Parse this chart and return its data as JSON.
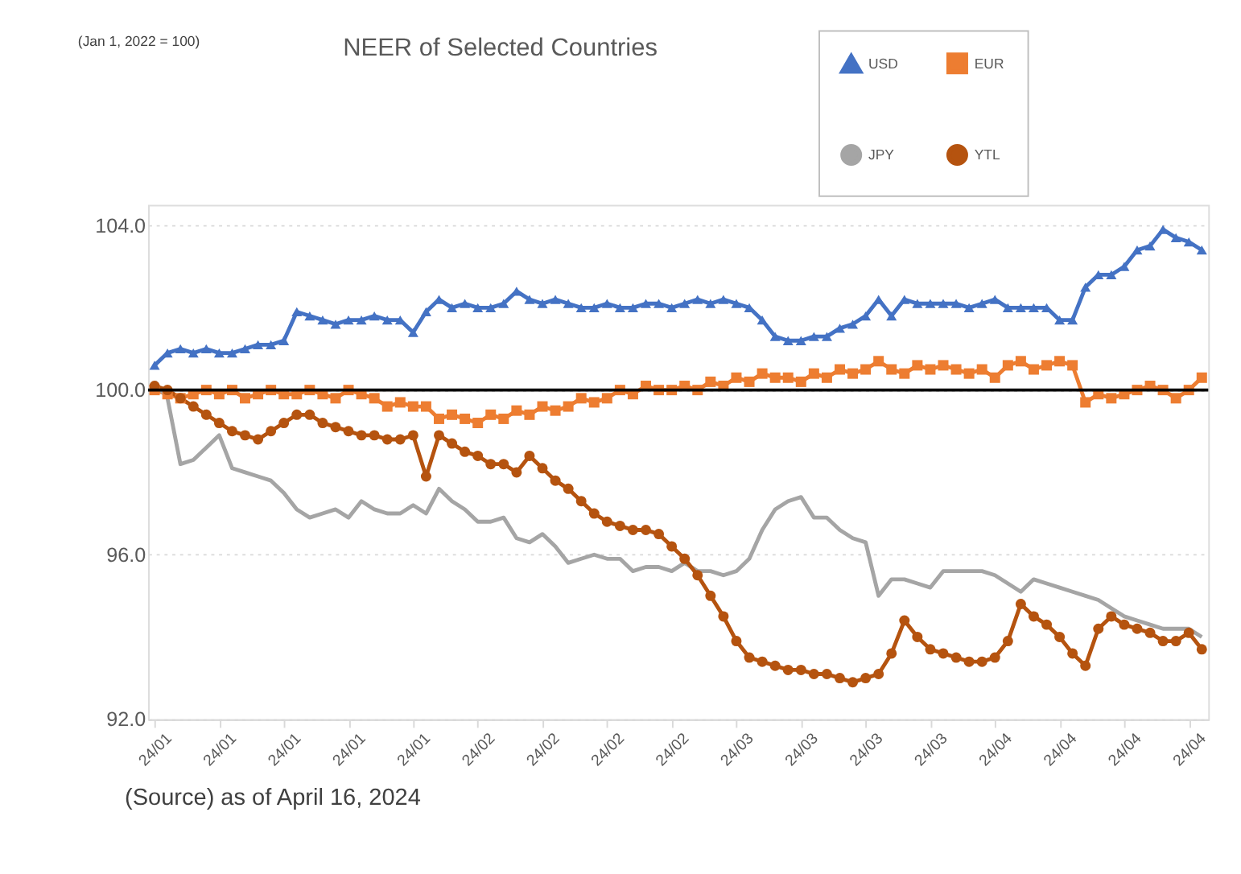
{
  "chart_data": {
    "type": "line",
    "title": "NEER of Selected Countries",
    "annotations": [
      "(Jan 1, 2022 = 100)",
      "(Source) as of April 16, 2024"
    ],
    "categories": [
      "24/01",
      null,
      null,
      null,
      null,
      "24/01",
      null,
      null,
      null,
      null,
      "24/01",
      null,
      null,
      null,
      null,
      "24/01",
      null,
      null,
      null,
      null,
      "24/01",
      null,
      null,
      null,
      null,
      "24/02",
      null,
      null,
      null,
      null,
      "24/02",
      null,
      null,
      null,
      null,
      "24/02",
      null,
      null,
      null,
      null,
      "24/02",
      null,
      null,
      null,
      null,
      "24/03",
      null,
      null,
      null,
      null,
      "24/03",
      null,
      null,
      null,
      null,
      "24/03",
      null,
      null,
      null,
      null,
      "24/03",
      null,
      null,
      null,
      null,
      "24/04",
      null,
      null,
      null,
      null,
      "24/04",
      null,
      null,
      null,
      null,
      "24/04",
      null,
      null,
      null,
      null,
      "24/04",
      null
    ],
    "series": [
      {
        "name": "USD",
        "color": "#4472c4",
        "marker": "triangle",
        "values": [
          100.6,
          100.9,
          101.0,
          100.9,
          101.0,
          100.9,
          100.9,
          101.0,
          101.1,
          101.1,
          101.2,
          101.9,
          101.8,
          101.7,
          101.6,
          101.7,
          101.7,
          101.8,
          101.7,
          101.7,
          101.4,
          101.9,
          102.2,
          102.0,
          102.1,
          102.0,
          102.0,
          102.1,
          102.4,
          102.2,
          102.1,
          102.2,
          102.1,
          102.0,
          102.0,
          102.1,
          102.0,
          102.0,
          102.1,
          102.1,
          102.0,
          102.1,
          102.2,
          102.1,
          102.2,
          102.1,
          102.0,
          101.7,
          101.3,
          101.2,
          101.2,
          101.3,
          101.3,
          101.5,
          101.6,
          101.8,
          102.2,
          101.8,
          102.2,
          102.1,
          102.1,
          102.1,
          102.1,
          102.0,
          102.1,
          102.2,
          102.0,
          102.0,
          102.0,
          102.0,
          101.7,
          101.7,
          102.5,
          102.8,
          102.8,
          103.0,
          103.4,
          103.5,
          103.9,
          103.7,
          103.6,
          103.4
        ]
      },
      {
        "name": "EUR",
        "color": "#ed7d31",
        "marker": "square",
        "values": [
          100.0,
          99.9,
          99.8,
          99.9,
          100.0,
          99.9,
          100.0,
          99.8,
          99.9,
          100.0,
          99.9,
          99.9,
          100.0,
          99.9,
          99.8,
          100.0,
          99.9,
          99.8,
          99.6,
          99.7,
          99.6,
          99.6,
          99.3,
          99.4,
          99.3,
          99.2,
          99.4,
          99.3,
          99.5,
          99.4,
          99.6,
          99.5,
          99.6,
          99.8,
          99.7,
          99.8,
          100.0,
          99.9,
          100.1,
          100.0,
          100.0,
          100.1,
          100.0,
          100.2,
          100.1,
          100.3,
          100.2,
          100.4,
          100.3,
          100.3,
          100.2,
          100.4,
          100.3,
          100.5,
          100.4,
          100.5,
          100.7,
          100.5,
          100.4,
          100.6,
          100.5,
          100.6,
          100.5,
          100.4,
          100.5,
          100.3,
          100.6,
          100.7,
          100.5,
          100.6,
          100.7,
          100.6,
          99.7,
          99.9,
          99.8,
          99.9,
          100.0,
          100.1,
          100.0,
          99.8,
          100.0,
          100.3
        ]
      },
      {
        "name": "JPY",
        "color": "#a5a5a5",
        "marker": "none",
        "values": [
          100.2,
          99.8,
          98.2,
          98.3,
          98.6,
          98.9,
          98.1,
          98.0,
          97.9,
          97.8,
          97.5,
          97.1,
          96.9,
          97.0,
          97.1,
          96.9,
          97.3,
          97.1,
          97.0,
          97.0,
          97.2,
          97.0,
          97.6,
          97.3,
          97.1,
          96.8,
          96.8,
          96.9,
          96.4,
          96.3,
          96.5,
          96.2,
          95.8,
          95.9,
          96.0,
          95.9,
          95.9,
          95.6,
          95.7,
          95.7,
          95.6,
          95.8,
          95.6,
          95.6,
          95.5,
          95.6,
          95.9,
          96.6,
          97.1,
          97.3,
          97.4,
          96.9,
          96.9,
          96.6,
          96.4,
          96.3,
          95.0,
          95.4,
          95.4,
          95.3,
          95.2,
          95.6,
          95.6,
          95.6,
          95.6,
          95.5,
          95.3,
          95.1,
          95.4,
          95.3,
          95.2,
          95.1,
          95.0,
          94.9,
          94.7,
          94.5,
          94.4,
          94.3,
          94.2,
          94.2,
          94.2,
          94.0
        ]
      },
      {
        "name": "YTL",
        "color": "#b5530f",
        "marker": "circle",
        "values": [
          100.1,
          100.0,
          99.8,
          99.6,
          99.4,
          99.2,
          99.0,
          98.9,
          98.8,
          99.0,
          99.2,
          99.4,
          99.4,
          99.2,
          99.1,
          99.0,
          98.9,
          98.9,
          98.8,
          98.8,
          98.9,
          97.9,
          98.9,
          98.7,
          98.5,
          98.4,
          98.2,
          98.2,
          98.0,
          98.4,
          98.1,
          97.8,
          97.6,
          97.3,
          97.0,
          96.8,
          96.7,
          96.6,
          96.6,
          96.5,
          96.2,
          95.9,
          95.5,
          95.0,
          94.5,
          93.9,
          93.5,
          93.4,
          93.3,
          93.2,
          93.2,
          93.1,
          93.1,
          93.0,
          92.9,
          93.0,
          93.1,
          93.6,
          94.4,
          94.0,
          93.7,
          93.6,
          93.5,
          93.4,
          93.4,
          93.5,
          93.9,
          94.8,
          94.5,
          94.3,
          94.0,
          93.6,
          93.3,
          94.2,
          94.5,
          94.3,
          94.2,
          94.1,
          93.9,
          93.9,
          94.1,
          93.7
        ]
      }
    ],
    "ylim": [
      92,
      104.5
    ],
    "yticks": [
      {
        "value": 92,
        "label": "92.0"
      },
      {
        "value": 96,
        "label": "96.0"
      },
      {
        "value": 100,
        "label": "100.0"
      },
      {
        "value": 104,
        "label": "104.0"
      }
    ],
    "ref_lines": [
      {
        "axis": "y",
        "value": 100,
        "color": "#000000"
      }
    ],
    "grid": "y",
    "legend": "top right",
    "line_style": "solid"
  }
}
